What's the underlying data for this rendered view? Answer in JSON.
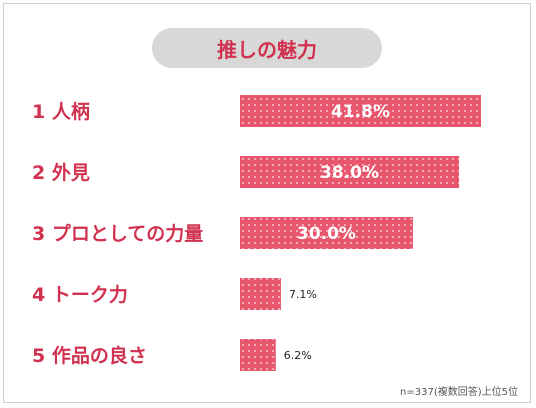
{
  "chart_data": {
    "type": "bar",
    "title": "推しの魅力",
    "categories": [
      "1 人柄",
      "2 外見",
      "3 プロとしての力量",
      "4 トーク力",
      "5 作品の良さ"
    ],
    "values": [
      41.8,
      38.0,
      30.0,
      7.1,
      6.2
    ],
    "value_labels": [
      "41.8%",
      "38.0%",
      "30.0%",
      "7.1%",
      "6.2%"
    ],
    "bar_color": "#e8566d",
    "title_color": "#d1324f",
    "orientation": "horizontal",
    "grid": false,
    "note": "n=337(複数回答)上位5位"
  }
}
